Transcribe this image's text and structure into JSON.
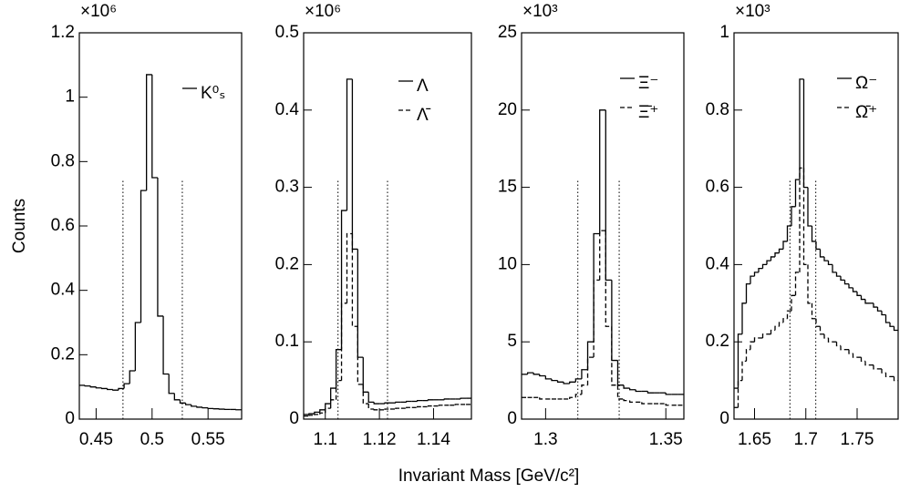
{
  "shared": {
    "y_label": "Counts",
    "x_label": "Invariant Mass [GeV/c²]"
  },
  "chart_data": [
    {
      "type": "histogram",
      "y_multiplier": "×10⁶",
      "xlim": [
        0.435,
        0.58
      ],
      "xticks": [
        0.45,
        0.5,
        0.55
      ],
      "ylim": [
        0,
        1.2
      ],
      "yticks": [
        0,
        0.2,
        0.4,
        0.6,
        0.8,
        1,
        1.2
      ],
      "cut_lines": [
        0.474,
        0.527
      ],
      "bins": [
        0.435,
        0.44,
        0.445,
        0.45,
        0.455,
        0.46,
        0.465,
        0.47,
        0.475,
        0.48,
        0.485,
        0.49,
        0.495,
        0.5,
        0.505,
        0.51,
        0.515,
        0.52,
        0.525,
        0.53,
        0.535,
        0.54,
        0.545,
        0.55,
        0.555,
        0.56,
        0.565,
        0.57,
        0.575,
        0.58
      ],
      "series": [
        {
          "name": "K⁰ₛ",
          "color": "#000000",
          "style": "solid",
          "values": [
            0.105,
            0.103,
            0.1,
            0.097,
            0.095,
            0.092,
            0.09,
            0.095,
            0.11,
            0.15,
            0.3,
            0.71,
            1.07,
            0.75,
            0.32,
            0.14,
            0.08,
            0.06,
            0.05,
            0.045,
            0.04,
            0.037,
            0.035,
            0.033,
            0.032,
            0.031,
            0.03,
            0.03,
            0.029
          ]
        }
      ]
    },
    {
      "type": "histogram",
      "y_multiplier": "×10⁶",
      "xlim": [
        1.092,
        1.154
      ],
      "xticks": [
        1.1,
        1.12,
        1.14
      ],
      "ylim": [
        0,
        0.5
      ],
      "yticks": [
        0,
        0.1,
        0.2,
        0.3,
        0.4,
        0.5
      ],
      "cut_lines": [
        1.1047,
        1.123
      ],
      "bins": [
        1.092,
        1.094,
        1.096,
        1.098,
        1.1,
        1.102,
        1.104,
        1.106,
        1.108,
        1.11,
        1.112,
        1.114,
        1.116,
        1.118,
        1.12,
        1.122,
        1.124,
        1.126,
        1.128,
        1.13,
        1.132,
        1.134,
        1.136,
        1.138,
        1.14,
        1.142,
        1.144,
        1.146,
        1.148,
        1.15,
        1.152,
        1.154
      ],
      "series": [
        {
          "name": "Λ",
          "color": "#000000",
          "style": "solid",
          "values": [
            0.006,
            0.007,
            0.009,
            0.012,
            0.02,
            0.04,
            0.09,
            0.27,
            0.44,
            0.22,
            0.08,
            0.035,
            0.022,
            0.02,
            0.02,
            0.021,
            0.021,
            0.022,
            0.022,
            0.023,
            0.023,
            0.024,
            0.024,
            0.025,
            0.025,
            0.025,
            0.026,
            0.026,
            0.026,
            0.027,
            0.027
          ]
        },
        {
          "name": "Λ̄",
          "color": "#000000",
          "style": "dashed",
          "values": [
            0.004,
            0.005,
            0.006,
            0.008,
            0.014,
            0.025,
            0.05,
            0.15,
            0.24,
            0.12,
            0.045,
            0.02,
            0.013,
            0.012,
            0.012,
            0.013,
            0.013,
            0.014,
            0.014,
            0.015,
            0.015,
            0.016,
            0.016,
            0.017,
            0.017,
            0.018,
            0.018,
            0.018,
            0.019,
            0.019,
            0.019
          ]
        }
      ]
    },
    {
      "type": "histogram",
      "y_multiplier": "×10³",
      "xlim": [
        1.29,
        1.3575
      ],
      "xticks": [
        1.3,
        1.35
      ],
      "ylim": [
        0,
        25
      ],
      "yticks": [
        0,
        5,
        10,
        15,
        20,
        25
      ],
      "cut_lines": [
        1.3134,
        1.3306
      ],
      "bins": [
        1.29,
        1.2925,
        1.295,
        1.2975,
        1.3,
        1.3025,
        1.305,
        1.3075,
        1.31,
        1.3125,
        1.315,
        1.3175,
        1.32,
        1.3225,
        1.325,
        1.3275,
        1.33,
        1.3325,
        1.335,
        1.3375,
        1.34,
        1.3425,
        1.345,
        1.3475,
        1.35,
        1.3525,
        1.355,
        1.3575
      ],
      "series": [
        {
          "name": "Ξ⁻",
          "color": "#000000",
          "style": "solid",
          "values": [
            2.9,
            3.0,
            2.9,
            2.8,
            2.6,
            2.5,
            2.4,
            2.3,
            2.4,
            2.6,
            3.2,
            5,
            12,
            20,
            9,
            3.8,
            2.2,
            2.0,
            1.9,
            1.8,
            1.8,
            1.7,
            1.7,
            1.7,
            1.6,
            1.6,
            1.6
          ]
        },
        {
          "name": "Ξ̄⁺",
          "color": "#000000",
          "style": "dashed",
          "values": [
            1.4,
            1.4,
            1.4,
            1.3,
            1.3,
            1.3,
            1.3,
            1.3,
            1.4,
            1.6,
            2.2,
            4,
            9,
            12.2,
            6,
            2.2,
            1.3,
            1.2,
            1.1,
            1.1,
            1.0,
            1.0,
            1.0,
            1.0,
            0.9,
            0.9,
            0.9
          ]
        }
      ]
    },
    {
      "type": "histogram",
      "y_multiplier": "×10³",
      "xlim": [
        1.63,
        1.79
      ],
      "xticks": [
        1.65,
        1.7,
        1.75
      ],
      "ylim": [
        0,
        1
      ],
      "yticks": [
        0,
        0.2,
        0.4,
        0.6,
        0.8,
        1
      ],
      "cut_lines": [
        1.6845,
        1.7097
      ],
      "bins": [
        1.63,
        1.634,
        1.638,
        1.642,
        1.646,
        1.65,
        1.654,
        1.658,
        1.662,
        1.666,
        1.67,
        1.674,
        1.678,
        1.682,
        1.686,
        1.69,
        1.694,
        1.698,
        1.702,
        1.706,
        1.71,
        1.714,
        1.718,
        1.722,
        1.726,
        1.73,
        1.734,
        1.738,
        1.742,
        1.746,
        1.75,
        1.754,
        1.758,
        1.762,
        1.766,
        1.77,
        1.774,
        1.778,
        1.782,
        1.786,
        1.79
      ],
      "series": [
        {
          "name": "Ω⁻",
          "color": "#000000",
          "style": "solid",
          "values": [
            0.08,
            0.22,
            0.3,
            0.35,
            0.37,
            0.38,
            0.39,
            0.4,
            0.41,
            0.42,
            0.43,
            0.44,
            0.46,
            0.5,
            0.55,
            0.62,
            0.88,
            0.6,
            0.5,
            0.46,
            0.44,
            0.42,
            0.41,
            0.4,
            0.38,
            0.37,
            0.36,
            0.35,
            0.34,
            0.33,
            0.32,
            0.31,
            0.3,
            0.3,
            0.29,
            0.28,
            0.27,
            0.25,
            0.24,
            0.23
          ]
        },
        {
          "name": "Ω̄⁺",
          "color": "#000000",
          "style": "dashed",
          "values": [
            0.03,
            0.1,
            0.15,
            0.18,
            0.2,
            0.21,
            0.21,
            0.22,
            0.22,
            0.23,
            0.24,
            0.25,
            0.26,
            0.28,
            0.32,
            0.38,
            0.65,
            0.4,
            0.3,
            0.26,
            0.24,
            0.22,
            0.21,
            0.2,
            0.2,
            0.19,
            0.18,
            0.18,
            0.17,
            0.16,
            0.16,
            0.15,
            0.14,
            0.14,
            0.13,
            0.13,
            0.12,
            0.11,
            0.11,
            0.1
          ]
        }
      ]
    }
  ]
}
